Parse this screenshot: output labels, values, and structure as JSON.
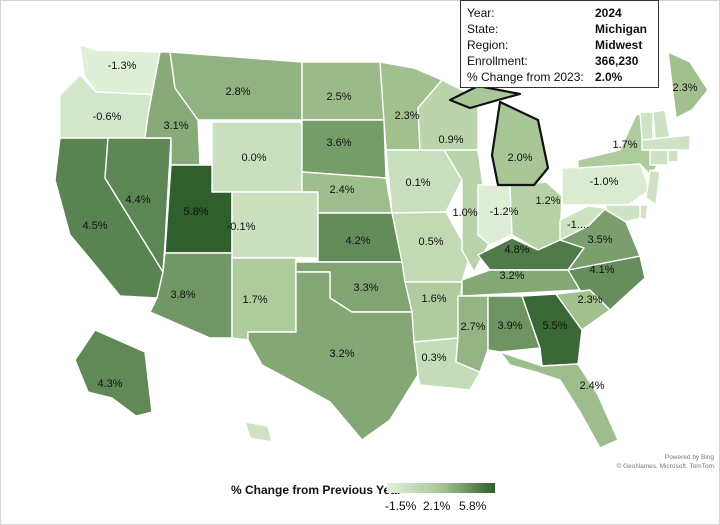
{
  "info_box": {
    "rows": [
      {
        "key": "Year:",
        "value": "2024"
      },
      {
        "key": "State:",
        "value": "Michigan"
      },
      {
        "key": "Region:",
        "value": "Midwest"
      },
      {
        "key": "Enrollment:",
        "value": "366,230"
      },
      {
        "key": "% Change from 2023:",
        "value": "2.0%"
      }
    ]
  },
  "legend": {
    "title": "% Change from Previous Year",
    "min_label": "-1.5%",
    "mid_label": "2.1%",
    "max_label": "5.8%",
    "min_value": -1.5,
    "mid_value": 2.1,
    "max_value": 5.8,
    "colors": {
      "low": "#e3f1dc",
      "mid": "#a7c694",
      "high": "#2f5f2d"
    }
  },
  "credit": {
    "line1": "Powered by Bing",
    "line2": "© GeoNames, Microsoft, TomTom"
  },
  "selected_state": "MI",
  "states": [
    {
      "code": "WA",
      "label": "-1.3%",
      "value": -1.3
    },
    {
      "code": "OR",
      "label": "-0.6%",
      "value": -0.6
    },
    {
      "code": "CA",
      "label": "4.5%",
      "value": 4.5
    },
    {
      "code": "NV",
      "label": "4.4%",
      "value": 4.4
    },
    {
      "code": "ID",
      "label": "3.1%",
      "value": 3.1
    },
    {
      "code": "MT",
      "label": "2.8%",
      "value": 2.8
    },
    {
      "code": "WY",
      "label": "0.0%",
      "value": 0.0
    },
    {
      "code": "UT",
      "label": "5.8%",
      "value": 5.8
    },
    {
      "code": "CO",
      "label": "-0.1%",
      "value": -0.1
    },
    {
      "code": "AZ",
      "label": "3.8%",
      "value": 3.8
    },
    {
      "code": "NM",
      "label": "1.7%",
      "value": 1.7
    },
    {
      "code": "ND",
      "label": "2.5%",
      "value": 2.5
    },
    {
      "code": "SD",
      "label": "3.6%",
      "value": 3.6
    },
    {
      "code": "NE",
      "label": "2.4%",
      "value": 2.4
    },
    {
      "code": "KS",
      "label": "4.2%",
      "value": 4.2
    },
    {
      "code": "OK",
      "label": "3.3%",
      "value": 3.3
    },
    {
      "code": "TX",
      "label": "3.2%",
      "value": 3.2
    },
    {
      "code": "MN",
      "label": "2.3%",
      "value": 2.3
    },
    {
      "code": "IA",
      "label": "0.1%",
      "value": 0.1
    },
    {
      "code": "MO",
      "label": "0.5%",
      "value": 0.5
    },
    {
      "code": "AR",
      "label": "1.6%",
      "value": 1.6
    },
    {
      "code": "LA",
      "label": "0.3%",
      "value": 0.3
    },
    {
      "code": "WI",
      "label": "0.9%",
      "value": 0.9
    },
    {
      "code": "IL",
      "label": "1.0%",
      "value": 1.0
    },
    {
      "code": "MI",
      "label": "2.0%",
      "value": 2.0
    },
    {
      "code": "IN",
      "label": "-1.2%",
      "value": -1.2
    },
    {
      "code": "OH",
      "label": "1.2%",
      "value": 1.2
    },
    {
      "code": "KY",
      "label": "4.8%",
      "value": 4.8
    },
    {
      "code": "TN",
      "label": "3.2%",
      "value": 3.2
    },
    {
      "code": "MS",
      "label": "2.7%",
      "value": 2.7
    },
    {
      "code": "AL",
      "label": "3.9%",
      "value": 3.9
    },
    {
      "code": "GA",
      "label": "5.5%",
      "value": 5.5
    },
    {
      "code": "FL",
      "label": "2.4%",
      "value": 2.4
    },
    {
      "code": "SC",
      "label": "2.3%",
      "value": 2.3
    },
    {
      "code": "NC",
      "label": "4.1%",
      "value": 4.1
    },
    {
      "code": "VA",
      "label": "3.5%",
      "value": 3.5
    },
    {
      "code": "WV",
      "label": "-1....",
      "value": null
    },
    {
      "code": "PA",
      "label": "-1.0%",
      "value": -1.0
    },
    {
      "code": "NY",
      "label": "1.7%",
      "value": 1.7
    },
    {
      "code": "ME",
      "label": "2.3%",
      "value": 2.3
    },
    {
      "code": "AK",
      "label": "4.3%",
      "value": 4.3
    },
    {
      "code": "VT",
      "label": "",
      "value": null
    },
    {
      "code": "NH",
      "label": "",
      "value": null
    },
    {
      "code": "MA",
      "label": "",
      "value": null
    },
    {
      "code": "CT",
      "label": "",
      "value": null
    },
    {
      "code": "RI",
      "label": "",
      "value": null
    },
    {
      "code": "NJ",
      "label": "",
      "value": null
    },
    {
      "code": "DE",
      "label": "",
      "value": null
    },
    {
      "code": "MD",
      "label": "",
      "value": null
    },
    {
      "code": "HI",
      "label": "",
      "value": null
    }
  ]
}
